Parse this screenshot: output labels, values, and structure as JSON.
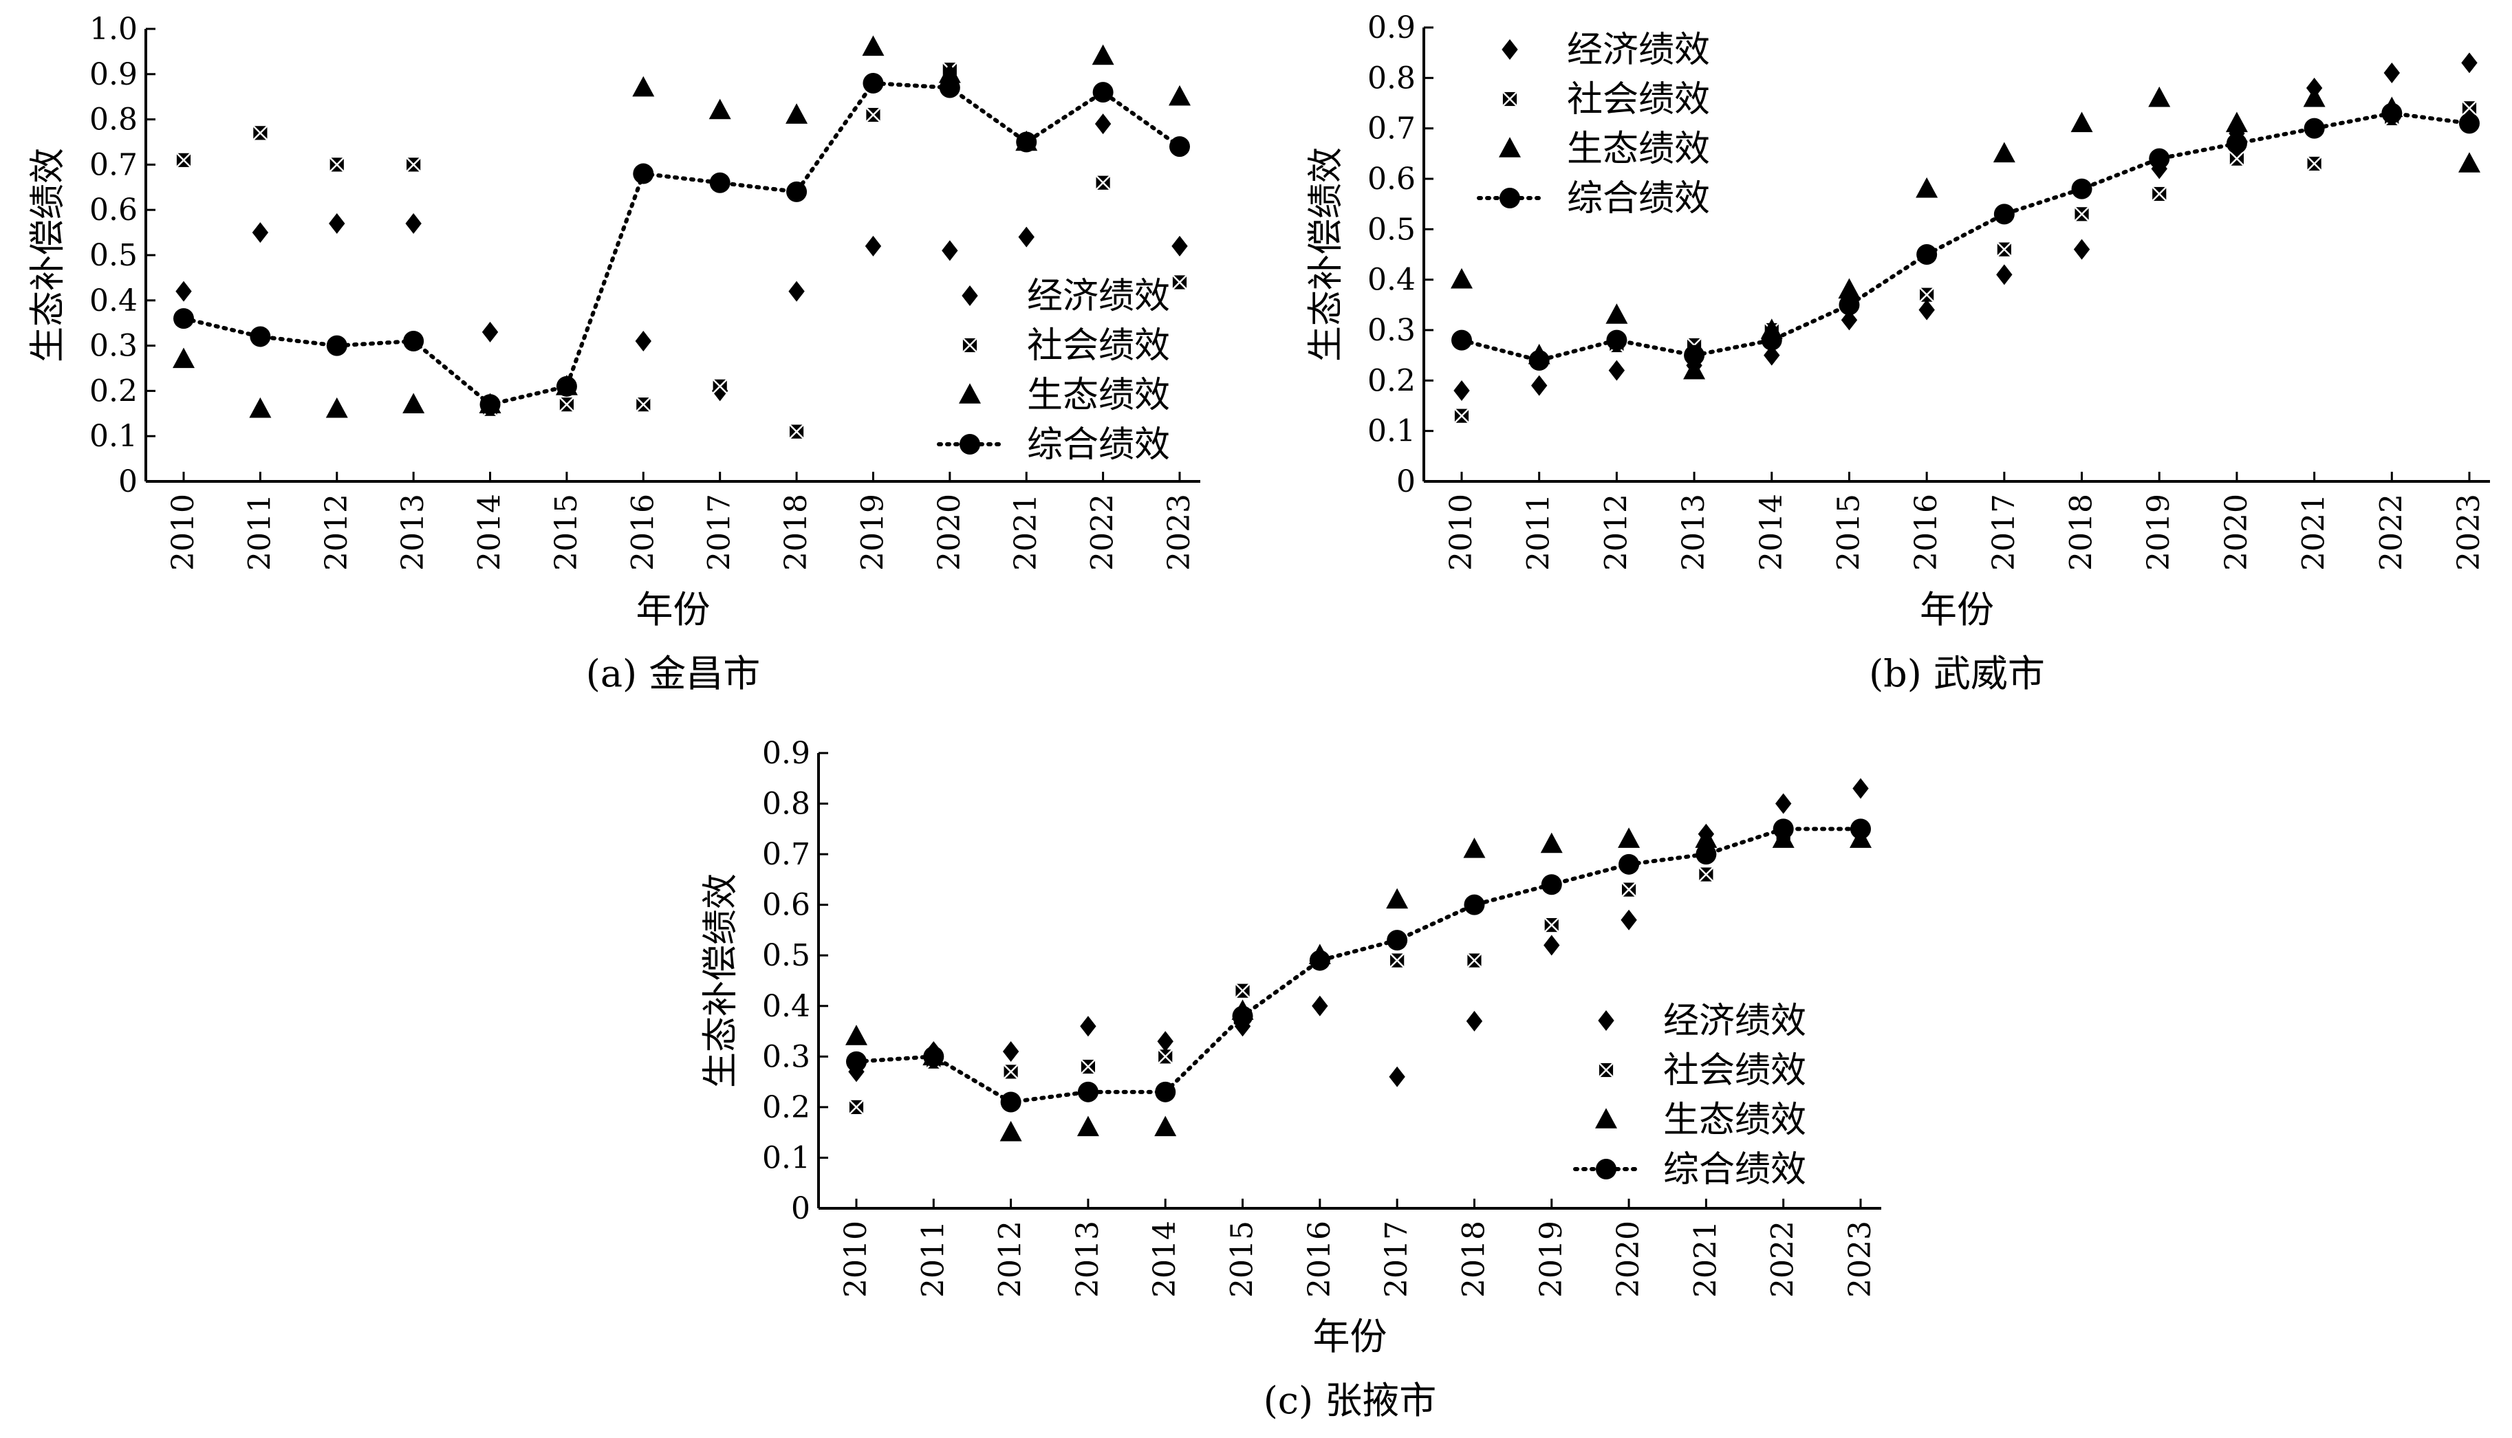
{
  "chart_data": [
    {
      "type": "scatter",
      "caption": "(a) 金昌市",
      "xlabel": "年份",
      "ylabel": "生态补偿绩效",
      "categories": [
        "2010",
        "2011",
        "2012",
        "2013",
        "2014",
        "2015",
        "2016",
        "2017",
        "2018",
        "2019",
        "2020",
        "2021",
        "2022",
        "2023"
      ],
      "ylim": [
        0,
        1.0
      ],
      "yticks": [
        "0",
        "0.1",
        "0.2",
        "0.3",
        "0.4",
        "0.5",
        "0.6",
        "0.7",
        "0.8",
        "0.9",
        "1.0"
      ],
      "legend_position": "bottom-right",
      "series": [
        {
          "name": "经济绩效",
          "marker": "diamond",
          "values": [
            0.42,
            0.55,
            0.57,
            0.57,
            0.33,
            0.21,
            0.31,
            0.2,
            0.42,
            0.52,
            0.51,
            0.54,
            0.79,
            0.52
          ]
        },
        {
          "name": "社会绩效",
          "marker": "square",
          "values": [
            0.71,
            0.77,
            0.7,
            0.7,
            0.16,
            0.17,
            0.17,
            0.21,
            0.11,
            0.81,
            0.91,
            0.75,
            0.66,
            0.44
          ]
        },
        {
          "name": "生态绩效",
          "marker": "triangle",
          "values": [
            0.27,
            0.16,
            0.16,
            0.17,
            0.17,
            0.21,
            0.87,
            0.82,
            0.81,
            0.96,
            0.9,
            0.75,
            0.94,
            0.85
          ]
        },
        {
          "name": "综合绩效",
          "marker": "circle-line",
          "values": [
            0.36,
            0.32,
            0.3,
            0.31,
            0.17,
            0.21,
            0.68,
            0.66,
            0.64,
            0.88,
            0.87,
            0.75,
            0.86,
            0.74
          ]
        }
      ]
    },
    {
      "type": "scatter",
      "caption": "(b) 武威市",
      "xlabel": "年份",
      "ylabel": "生态补偿绩效",
      "categories": [
        "2010",
        "2011",
        "2012",
        "2013",
        "2014",
        "2015",
        "2016",
        "2017",
        "2018",
        "2019",
        "2020",
        "2021",
        "2022",
        "2023"
      ],
      "ylim": [
        0,
        0.9
      ],
      "yticks": [
        "0",
        "0.1",
        "0.2",
        "0.3",
        "0.4",
        "0.5",
        "0.6",
        "0.7",
        "0.8",
        "0.9"
      ],
      "legend_position": "top-left",
      "series": [
        {
          "name": "经济绩效",
          "marker": "diamond",
          "values": [
            0.18,
            0.19,
            0.22,
            0.23,
            0.25,
            0.32,
            0.34,
            0.41,
            0.46,
            0.62,
            0.69,
            0.78,
            0.81,
            0.83
          ]
        },
        {
          "name": "社会绩效",
          "marker": "square",
          "values": [
            0.13,
            0.24,
            0.27,
            0.27,
            0.3,
            0.35,
            0.37,
            0.46,
            0.53,
            0.57,
            0.64,
            0.63,
            0.72,
            0.74
          ]
        },
        {
          "name": "生态绩效",
          "marker": "triangle",
          "values": [
            0.4,
            0.25,
            0.33,
            0.22,
            0.3,
            0.38,
            0.58,
            0.65,
            0.71,
            0.76,
            0.71,
            0.76,
            0.74,
            0.63
          ]
        },
        {
          "name": "综合绩效",
          "marker": "circle-line",
          "values": [
            0.28,
            0.24,
            0.28,
            0.25,
            0.28,
            0.35,
            0.45,
            0.53,
            0.58,
            0.64,
            0.67,
            0.7,
            0.73,
            0.71
          ]
        }
      ]
    },
    {
      "type": "scatter",
      "caption": "(c) 张掖市",
      "xlabel": "年份",
      "ylabel": "生态补偿绩效",
      "categories": [
        "2010",
        "2011",
        "2012",
        "2013",
        "2014",
        "2015",
        "2016",
        "2017",
        "2018",
        "2019",
        "2020",
        "2021",
        "2022",
        "2023"
      ],
      "ylim": [
        0,
        0.9
      ],
      "yticks": [
        "0",
        "0.1",
        "0.2",
        "0.3",
        "0.4",
        "0.5",
        "0.6",
        "0.7",
        "0.8",
        "0.9"
      ],
      "legend_position": "bottom-right",
      "series": [
        {
          "name": "经济绩效",
          "marker": "diamond",
          "values": [
            0.27,
            0.31,
            0.31,
            0.36,
            0.33,
            0.36,
            0.4,
            0.26,
            0.37,
            0.52,
            0.57,
            0.74,
            0.8,
            0.83
          ]
        },
        {
          "name": "社会绩效",
          "marker": "square",
          "values": [
            0.2,
            0.29,
            0.27,
            0.28,
            0.3,
            0.43,
            0.49,
            0.49,
            0.49,
            0.56,
            0.63,
            0.66,
            0.73,
            0.75
          ]
        },
        {
          "name": "生态绩效",
          "marker": "triangle",
          "values": [
            0.34,
            0.3,
            0.15,
            0.16,
            0.16,
            0.39,
            0.5,
            0.61,
            0.71,
            0.72,
            0.73,
            0.73,
            0.73,
            0.73
          ]
        },
        {
          "name": "综合绩效",
          "marker": "circle-line",
          "values": [
            0.29,
            0.3,
            0.21,
            0.23,
            0.23,
            0.38,
            0.49,
            0.53,
            0.6,
            0.64,
            0.68,
            0.7,
            0.75,
            0.75
          ]
        }
      ]
    }
  ]
}
